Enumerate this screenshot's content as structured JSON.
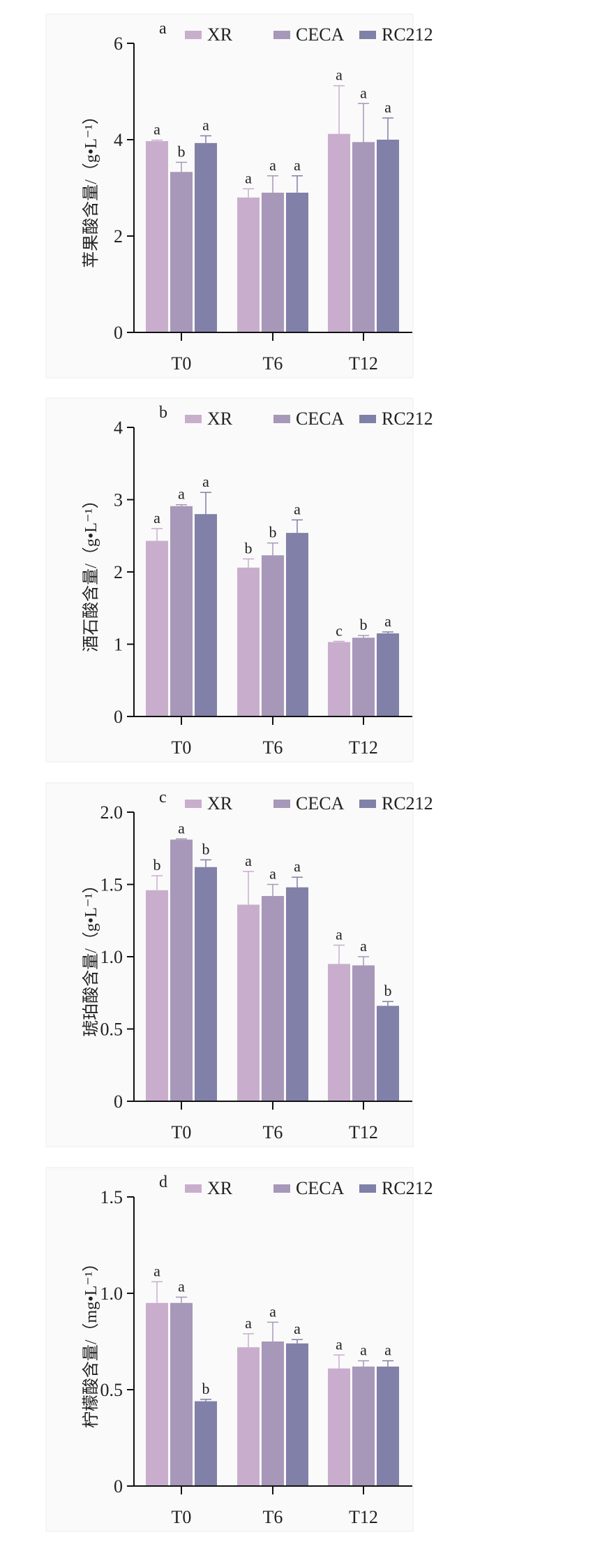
{
  "colors": {
    "XR": "#c8aecc",
    "CECA": "#a797b8",
    "RC212": "#8080a8"
  },
  "chart_data": [
    {
      "type": "bar",
      "panel_label": "a",
      "ylabel": "苹果酸含量/（g•L⁻¹）",
      "categories": [
        "T0",
        "T6",
        "T12"
      ],
      "ylim": [
        0,
        6
      ],
      "yticks": [
        "0",
        "2",
        "4",
        "6"
      ],
      "ytick_values": [
        0,
        2,
        4,
        6
      ],
      "legend": [
        "XR",
        "CECA",
        "RC212"
      ],
      "legend_position": "top",
      "series": [
        {
          "name": "XR",
          "values": [
            3.97,
            2.8,
            4.12
          ],
          "errors": [
            0.02,
            0.18,
            1.0
          ],
          "letters": [
            "a",
            "a",
            "a"
          ]
        },
        {
          "name": "CECA",
          "values": [
            3.33,
            2.9,
            3.95
          ],
          "errors": [
            0.2,
            0.35,
            0.8
          ],
          "letters": [
            "b",
            "a",
            "a"
          ]
        },
        {
          "name": "RC212",
          "values": [
            3.93,
            2.9,
            4.0
          ],
          "errors": [
            0.15,
            0.35,
            0.45
          ],
          "letters": [
            "a",
            "a",
            "a"
          ]
        }
      ]
    },
    {
      "type": "bar",
      "panel_label": "b",
      "ylabel": "酒石酸含量/（g•L⁻¹）",
      "categories": [
        "T0",
        "T6",
        "T12"
      ],
      "ylim": [
        0,
        4
      ],
      "yticks": [
        "0",
        "1",
        "2",
        "3",
        "4"
      ],
      "ytick_values": [
        0,
        1,
        2,
        3,
        4
      ],
      "legend": [
        "XR",
        "CECA",
        "RC212"
      ],
      "legend_position": "top",
      "series": [
        {
          "name": "XR",
          "values": [
            2.43,
            2.06,
            1.03
          ],
          "errors": [
            0.17,
            0.12,
            0.01
          ],
          "letters": [
            "a",
            "b",
            "c"
          ]
        },
        {
          "name": "CECA",
          "values": [
            2.91,
            2.23,
            1.09
          ],
          "errors": [
            0.02,
            0.17,
            0.03
          ],
          "letters": [
            "a",
            "b",
            "b"
          ]
        },
        {
          "name": "RC212",
          "values": [
            2.8,
            2.54,
            1.15
          ],
          "errors": [
            0.3,
            0.18,
            0.02
          ],
          "letters": [
            "a",
            "a",
            "a"
          ]
        }
      ]
    },
    {
      "type": "bar",
      "panel_label": "c",
      "ylabel": "琥珀酸含量/（g•L⁻¹）",
      "categories": [
        "T0",
        "T6",
        "T12"
      ],
      "ylim": [
        0,
        2.0
      ],
      "yticks": [
        "0",
        "0.5",
        "1.0",
        "1.5",
        "2.0"
      ],
      "ytick_values": [
        0,
        0.5,
        1.0,
        1.5,
        2.0
      ],
      "legend": [
        "XR",
        "CECA",
        "RC212"
      ],
      "legend_position": "top",
      "series": [
        {
          "name": "XR",
          "values": [
            1.46,
            1.36,
            0.95
          ],
          "errors": [
            0.1,
            0.23,
            0.13
          ],
          "letters": [
            "b",
            "a",
            "a"
          ]
        },
        {
          "name": "CECA",
          "values": [
            1.81,
            1.42,
            0.94
          ],
          "errors": [
            0.005,
            0.08,
            0.06
          ],
          "letters": [
            "a",
            "a",
            "a"
          ]
        },
        {
          "name": "RC212",
          "values": [
            1.62,
            1.48,
            0.66
          ],
          "errors": [
            0.05,
            0.07,
            0.03
          ],
          "letters": [
            "b",
            "a",
            "b"
          ]
        }
      ]
    },
    {
      "type": "bar",
      "panel_label": "d",
      "ylabel": "柠檬酸含量/（mg•L⁻¹）",
      "categories": [
        "T0",
        "T6",
        "T12"
      ],
      "ylim": [
        0,
        1.5
      ],
      "yticks": [
        "0",
        "0.5",
        "1.0",
        "1.5"
      ],
      "ytick_values": [
        0,
        0.5,
        1.0,
        1.5
      ],
      "legend": [
        "XR",
        "CECA",
        "RC212"
      ],
      "legend_position": "top",
      "series": [
        {
          "name": "XR",
          "values": [
            0.95,
            0.72,
            0.61
          ],
          "errors": [
            0.11,
            0.07,
            0.07
          ],
          "letters": [
            "a",
            "a",
            "a"
          ]
        },
        {
          "name": "CECA",
          "values": [
            0.95,
            0.75,
            0.62
          ],
          "errors": [
            0.03,
            0.1,
            0.03
          ],
          "letters": [
            "a",
            "a",
            "a"
          ]
        },
        {
          "name": "RC212",
          "values": [
            0.44,
            0.74,
            0.62
          ],
          "errors": [
            0.01,
            0.02,
            0.03
          ],
          "letters": [
            "b",
            "a",
            "a"
          ]
        }
      ]
    }
  ]
}
